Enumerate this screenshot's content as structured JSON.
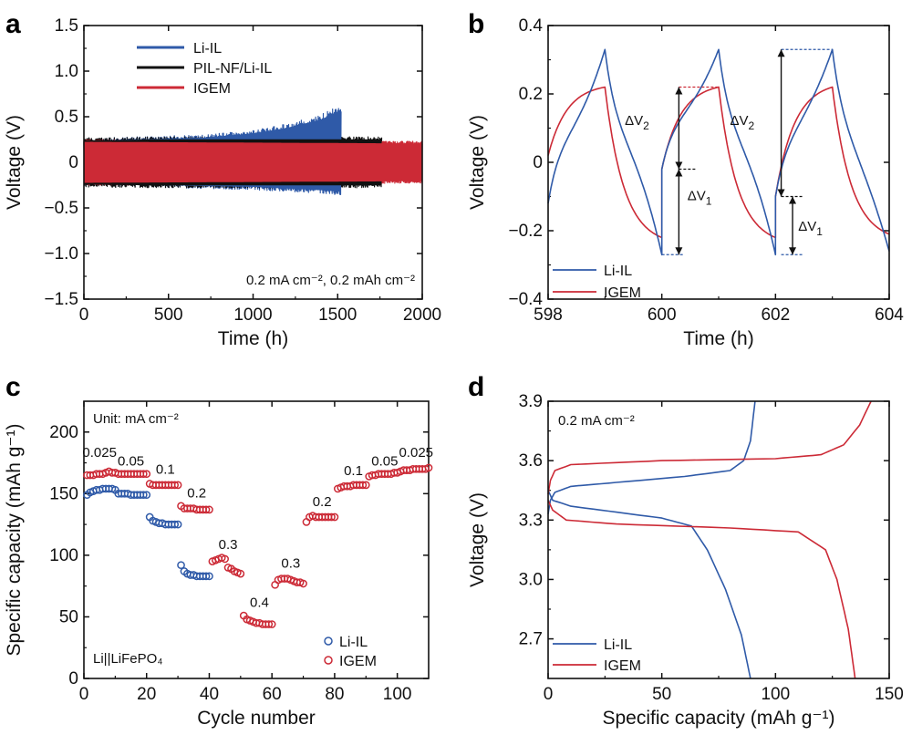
{
  "colors": {
    "blue": "#2f5aa8",
    "red": "#cc2a36",
    "black": "#111111",
    "axis": "#111111"
  },
  "chart_data": [
    {
      "panel": "a",
      "type": "line",
      "xlabel": "Time (h)",
      "ylabel": "Voltage (V)",
      "xlim": [
        0,
        2000
      ],
      "ylim": [
        -1.5,
        1.5
      ],
      "xticks": [
        0,
        500,
        1000,
        1500,
        2000
      ],
      "xtick_labels": [
        "0",
        "500",
        "1000",
        "1500",
        "2000"
      ],
      "yticks": [
        -1.5,
        -1.0,
        -0.5,
        0,
        0.5,
        1.0,
        1.5
      ],
      "ytick_labels": [
        "−1.5",
        "−1.0",
        "−0.5",
        "0",
        "0.5",
        "1.0",
        "1.5"
      ],
      "annotation": "0.2 mA cm⁻², 0.2 mAh cm⁻²",
      "series": [
        {
          "name": "Li-IL",
          "color": "#2f5aa8",
          "envelope_upper": [
            [
              0,
              0.26
            ],
            [
              300,
              0.28
            ],
            [
              700,
              0.3
            ],
            [
              1000,
              0.35
            ],
            [
              1200,
              0.42
            ],
            [
              1400,
              0.52
            ],
            [
              1500,
              0.62
            ],
            [
              1520,
              0.65
            ]
          ],
          "envelope_lower": [
            [
              0,
              -0.26
            ],
            [
              500,
              -0.28
            ],
            [
              1000,
              -0.3
            ],
            [
              1400,
              -0.34
            ],
            [
              1520,
              -0.36
            ]
          ]
        },
        {
          "name": "PIL-NF/Li-IL",
          "color": "#111111",
          "envelope_upper": [
            [
              0,
              0.27
            ],
            [
              200,
              0.27
            ],
            [
              400,
              0.28
            ],
            [
              1000,
              0.28
            ],
            [
              1760,
              0.28
            ]
          ],
          "envelope_lower": [
            [
              0,
              -0.27
            ],
            [
              400,
              -0.28
            ],
            [
              1000,
              -0.28
            ],
            [
              1760,
              -0.28
            ]
          ]
        },
        {
          "name": "IGEM",
          "color": "#cc2a36",
          "envelope_upper": [
            [
              0,
              0.25
            ],
            [
              1000,
              0.24
            ],
            [
              2000,
              0.23
            ]
          ],
          "envelope_lower": [
            [
              0,
              -0.25
            ],
            [
              1000,
              -0.24
            ],
            [
              2000,
              -0.23
            ]
          ]
        }
      ]
    },
    {
      "panel": "b",
      "type": "line",
      "xlabel": "Time (h)",
      "ylabel": "Voltage (V)",
      "xlim": [
        598,
        604
      ],
      "ylim": [
        -0.4,
        0.4
      ],
      "xticks": [
        598,
        600,
        602,
        604
      ],
      "xtick_labels": [
        "598",
        "600",
        "602",
        "604"
      ],
      "yticks": [
        -0.4,
        -0.2,
        0,
        0.2,
        0.4
      ],
      "ytick_labels": [
        "−0.4",
        "−0.2",
        "0",
        "0.2",
        "0.4"
      ],
      "annotations": [
        "ΔV2",
        "ΔV1",
        "ΔV2",
        "ΔV1"
      ],
      "series": [
        {
          "name": "Li-IL",
          "color": "#2f5aa8",
          "amplitude": 0.33,
          "start": -0.12
        },
        {
          "name": "IGEM",
          "color": "#cc2a36",
          "amplitude": 0.22,
          "start": 0.02
        }
      ]
    },
    {
      "panel": "c",
      "type": "scatter",
      "xlabel": "Cycle number",
      "ylabel": "Specific capacity (mAh g⁻¹)",
      "xlim": [
        0,
        110
      ],
      "ylim": [
        0,
        225
      ],
      "xticks": [
        0,
        20,
        40,
        60,
        80,
        100
      ],
      "xtick_labels": [
        "0",
        "20",
        "40",
        "60",
        "80",
        "100"
      ],
      "yticks": [
        0,
        50,
        100,
        150,
        200
      ],
      "ytick_labels": [
        "0",
        "50",
        "100",
        "150",
        "200"
      ],
      "unit_note": "Unit: mA cm⁻²",
      "cell_label": "Li||LiFePO₄",
      "rate_labels": [
        {
          "text": "0.025",
          "x": 5,
          "y": 180
        },
        {
          "text": "0.05",
          "x": 15,
          "y": 173
        },
        {
          "text": "0.1",
          "x": 26,
          "y": 166
        },
        {
          "text": "0.2",
          "x": 36,
          "y": 147
        },
        {
          "text": "0.3",
          "x": 46,
          "y": 105
        },
        {
          "text": "0.4",
          "x": 56,
          "y": 58
        },
        {
          "text": "0.3",
          "x": 66,
          "y": 90
        },
        {
          "text": "0.2",
          "x": 76,
          "y": 140
        },
        {
          "text": "0.1",
          "x": 86,
          "y": 165
        },
        {
          "text": "0.05",
          "x": 96,
          "y": 173
        },
        {
          "text": "0.025",
          "x": 106,
          "y": 180
        }
      ],
      "series": [
        {
          "name": "Li-IL",
          "color": "#2f5aa8",
          "x": [
            1,
            2,
            3,
            4,
            5,
            6,
            7,
            8,
            9,
            10,
            11,
            12,
            13,
            14,
            15,
            16,
            17,
            18,
            19,
            20,
            21,
            22,
            23,
            24,
            25,
            26,
            27,
            28,
            29,
            30,
            31,
            32,
            33,
            34,
            35,
            36,
            37,
            38,
            39,
            40
          ],
          "y": [
            149,
            151,
            152,
            153,
            153,
            154,
            154,
            154,
            154,
            153,
            150,
            150,
            150,
            150,
            149,
            149,
            149,
            149,
            149,
            149,
            131,
            128,
            127,
            126,
            126,
            125,
            125,
            125,
            125,
            125,
            92,
            87,
            85,
            84,
            84,
            83,
            83,
            83,
            83,
            83
          ]
        },
        {
          "name": "IGEM",
          "color": "#cc2a36",
          "x": [
            1,
            2,
            3,
            4,
            5,
            6,
            7,
            8,
            9,
            10,
            11,
            12,
            13,
            14,
            15,
            16,
            17,
            18,
            19,
            20,
            21,
            22,
            23,
            24,
            25,
            26,
            27,
            28,
            29,
            30,
            31,
            32,
            33,
            34,
            35,
            36,
            37,
            38,
            39,
            40,
            41,
            42,
            43,
            44,
            45,
            46,
            47,
            48,
            49,
            50,
            51,
            52,
            53,
            54,
            55,
            56,
            57,
            58,
            59,
            60,
            61,
            62,
            63,
            64,
            65,
            66,
            67,
            68,
            69,
            70,
            71,
            72,
            73,
            74,
            75,
            76,
            77,
            78,
            79,
            80,
            81,
            82,
            83,
            84,
            85,
            86,
            87,
            88,
            89,
            90,
            91,
            92,
            93,
            94,
            95,
            96,
            97,
            98,
            99,
            100,
            101,
            102,
            103,
            104,
            105,
            106,
            107,
            108,
            109,
            110
          ],
          "y": [
            165,
            165,
            165,
            166,
            166,
            166,
            167,
            168,
            167,
            167,
            166,
            166,
            166,
            166,
            166,
            166,
            166,
            166,
            166,
            166,
            158,
            157,
            157,
            157,
            157,
            157,
            157,
            157,
            157,
            157,
            140,
            138,
            138,
            138,
            138,
            137,
            137,
            137,
            137,
            137,
            95,
            96,
            97,
            98,
            97,
            90,
            89,
            87,
            86,
            85,
            51,
            48,
            47,
            46,
            45,
            45,
            44,
            44,
            44,
            44,
            76,
            80,
            81,
            81,
            81,
            80,
            79,
            78,
            78,
            77,
            127,
            131,
            132,
            131,
            131,
            131,
            131,
            131,
            131,
            131,
            154,
            155,
            156,
            156,
            156,
            157,
            157,
            157,
            157,
            157,
            164,
            165,
            165,
            166,
            166,
            166,
            166,
            166,
            167,
            167,
            168,
            169,
            169,
            169,
            170,
            170,
            170,
            170,
            170,
            171
          ]
        }
      ]
    },
    {
      "panel": "d",
      "type": "line",
      "xlabel": "Specific capacity (mAh g⁻¹)",
      "ylabel": "Voltage (V)",
      "xlim": [
        0,
        150
      ],
      "ylim": [
        2.5,
        3.9
      ],
      "xticks": [
        0,
        50,
        100,
        150
      ],
      "xtick_labels": [
        "0",
        "50",
        "100",
        "150"
      ],
      "yticks": [
        2.7,
        3.0,
        3.3,
        3.6,
        3.9
      ],
      "ytick_labels": [
        "2.7",
        "3.0",
        "3.3",
        "3.6",
        "3.9"
      ],
      "annotation": "0.2 mA cm⁻²",
      "series": [
        {
          "name": "Li-IL",
          "color": "#2f5aa8",
          "charge": [
            [
              0,
              3.33
            ],
            [
              1,
              3.4
            ],
            [
              3,
              3.44
            ],
            [
              10,
              3.47
            ],
            [
              30,
              3.49
            ],
            [
              60,
              3.52
            ],
            [
              80,
              3.55
            ],
            [
              86,
              3.6
            ],
            [
              89,
              3.7
            ],
            [
              91,
              3.9
            ]
          ],
          "discharge": [
            [
              0,
              3.45
            ],
            [
              2,
              3.4
            ],
            [
              10,
              3.37
            ],
            [
              30,
              3.34
            ],
            [
              50,
              3.31
            ],
            [
              63,
              3.27
            ],
            [
              70,
              3.15
            ],
            [
              78,
              2.95
            ],
            [
              85,
              2.72
            ],
            [
              89,
              2.5
            ]
          ]
        },
        {
          "name": "IGEM",
          "color": "#cc2a36",
          "charge": [
            [
              0,
              3.43
            ],
            [
              1,
              3.5
            ],
            [
              3,
              3.55
            ],
            [
              10,
              3.58
            ],
            [
              50,
              3.6
            ],
            [
              100,
              3.61
            ],
            [
              120,
              3.63
            ],
            [
              130,
              3.68
            ],
            [
              137,
              3.78
            ],
            [
              142,
              3.9
            ]
          ],
          "discharge": [
            [
              0,
              3.4
            ],
            [
              2,
              3.35
            ],
            [
              8,
              3.3
            ],
            [
              30,
              3.28
            ],
            [
              80,
              3.26
            ],
            [
              110,
              3.24
            ],
            [
              122,
              3.15
            ],
            [
              127,
              3.0
            ],
            [
              132,
              2.75
            ],
            [
              135,
              2.5
            ]
          ]
        }
      ]
    }
  ]
}
